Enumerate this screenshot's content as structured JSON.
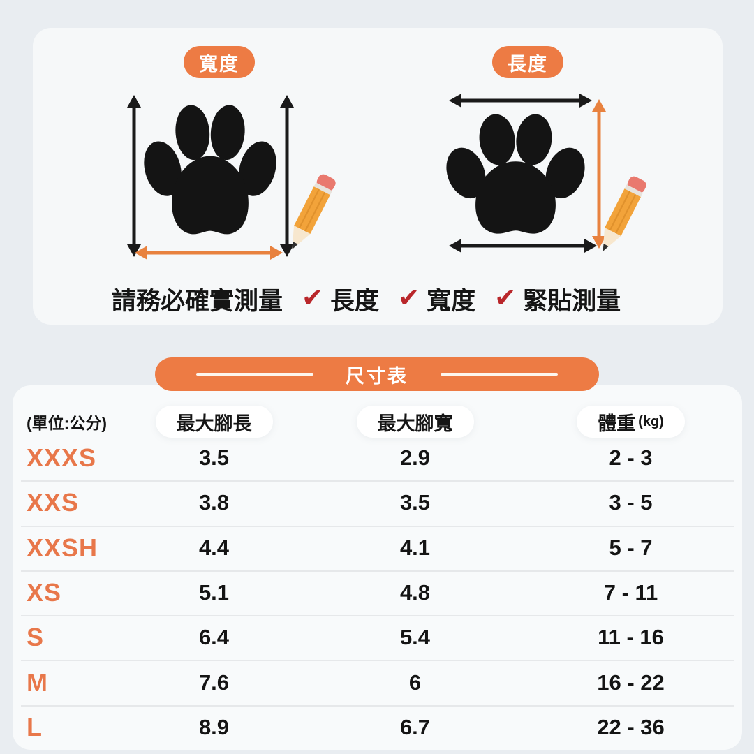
{
  "measure": {
    "width_badge": "寬度",
    "length_badge": "長度",
    "caption": "請務必確實測量",
    "checkmark": "✔",
    "checks": [
      "長度",
      "寬度",
      "緊貼測量"
    ]
  },
  "size_chart": {
    "title": "尺寸表",
    "unit_label": "(單位:公分)",
    "columns": [
      "最大腳長",
      "最大腳寬",
      "體重"
    ],
    "weight_unit": "(kg)",
    "rows": [
      {
        "size": "XXXS",
        "max_length": "3.5",
        "max_width": "2.9",
        "weight": "2 - 3"
      },
      {
        "size": "XXS",
        "max_length": "3.8",
        "max_width": "3.5",
        "weight": "3 - 5"
      },
      {
        "size": "XXSH",
        "max_length": "4.4",
        "max_width": "4.1",
        "weight": "5 - 7"
      },
      {
        "size": "XS",
        "max_length": "5.1",
        "max_width": "4.8",
        "weight": "7 - 11"
      },
      {
        "size": "S",
        "max_length": "6.4",
        "max_width": "5.4",
        "weight": "11 - 16"
      },
      {
        "size": "M",
        "max_length": "7.6",
        "max_width": "6",
        "weight": "16 - 22"
      },
      {
        "size": "L",
        "max_length": "8.9",
        "max_width": "6.7",
        "weight": "22 - 36"
      }
    ]
  },
  "colors": {
    "accent_orange": "#ed7b44",
    "row_label_orange": "#e8774a",
    "check_red": "#b9272b",
    "text_black": "#151515",
    "page_background": "#e9edf1",
    "card_background": "#f7f9fa"
  }
}
